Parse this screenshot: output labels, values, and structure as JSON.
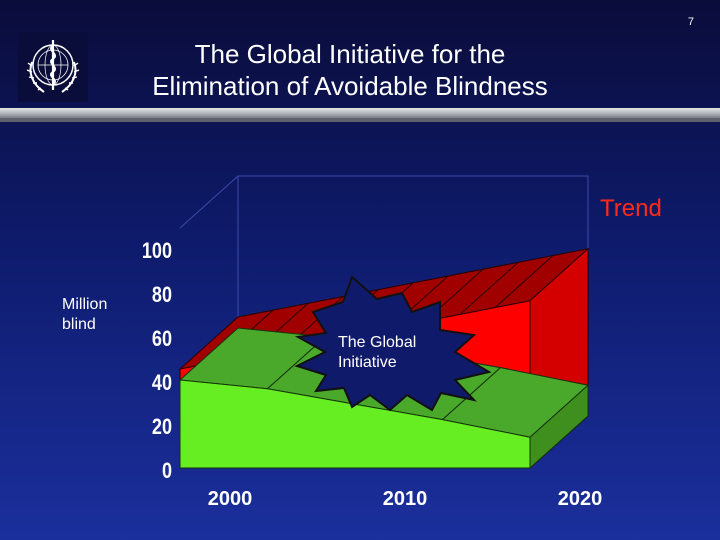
{
  "slide": {
    "number": "7",
    "title": "The Global Initiative for the\nElimination of Avoidable Blindness"
  },
  "logo": {
    "icon": "who-emblem-icon"
  },
  "labels": {
    "y_unit": "Million\nblind",
    "trend": "Trend",
    "callout": "The Global\nInitiative"
  },
  "colors": {
    "trend_fill": "#ff0000",
    "trend_side": "#d40000",
    "trend_top": "#a00000",
    "initiative_fill": "#66ee22",
    "initiative_top": "#4aa82a",
    "initiative_side": "#3f8f1f",
    "burst_fill": "#101a6b",
    "burst_stroke": "#111111"
  },
  "chart_data": {
    "type": "area",
    "title": "",
    "x_ticks": [
      "2000",
      "2010",
      "2020"
    ],
    "y_ticks": [
      "0",
      "20",
      "40",
      "60",
      "80",
      "100"
    ],
    "ylim": [
      0,
      100
    ],
    "xlim": [
      2000,
      2020
    ],
    "series": [
      {
        "name": "Trend",
        "x": [
          2000,
          2020
        ],
        "values": [
          45,
          76
        ]
      },
      {
        "name": "The Global Initiative",
        "x": [
          2000,
          2005,
          2010,
          2015,
          2020
        ],
        "values": [
          40,
          36,
          29,
          22,
          14
        ]
      }
    ],
    "grid": true
  }
}
